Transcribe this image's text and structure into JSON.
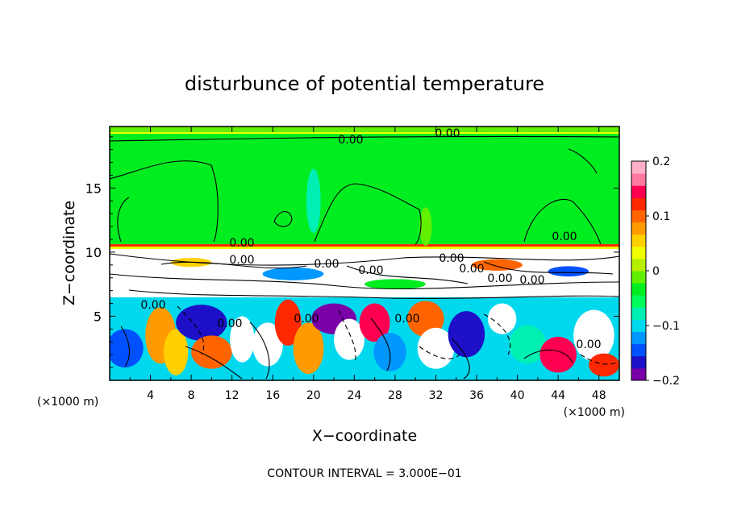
{
  "chart_data": {
    "type": "heatmap",
    "title": "disturbunce of potential temperature",
    "xlabel": "X−coordinate",
    "ylabel": "Z−coordinate",
    "x_unit": "(×1000 m)",
    "y_unit": "(×1000 m)",
    "xlim": [
      0,
      50
    ],
    "ylim": [
      0,
      19.8
    ],
    "x_ticks": [
      "4",
      "8",
      "12",
      "16",
      "20",
      "24",
      "28",
      "32",
      "36",
      "40",
      "44",
      "48"
    ],
    "y_ticks": [
      "5",
      "10",
      "15"
    ],
    "colorbar": {
      "min": -0.2,
      "max": 0.2,
      "tick_labels": [
        "0.2",
        "0.1",
        "0",
        "−0.1",
        "−0.2"
      ],
      "colors": [
        "#7a00a8",
        "#1e0fc8",
        "#0050ff",
        "#0098ff",
        "#00d8ee",
        "#00f0b4",
        "#00ff5a",
        "#00ee20",
        "#60f000",
        "#b4f000",
        "#f0ff00",
        "#ffd000",
        "#ff9a00",
        "#ff6400",
        "#ff2800",
        "#ff0050",
        "#ff78a0",
        "#ffb0c8"
      ]
    },
    "contour_interval_label": "CONTOUR INTERVAL = 3.000E−01",
    "contour_labels": [
      "0.00",
      "0.00",
      "0.00",
      "0.00",
      "0.00",
      "0.00",
      "0.00",
      "0.00",
      "0.00",
      "0.00",
      "0.00",
      "0.00",
      "0.00",
      "0.00",
      "0.00",
      "0.00"
    ]
  }
}
